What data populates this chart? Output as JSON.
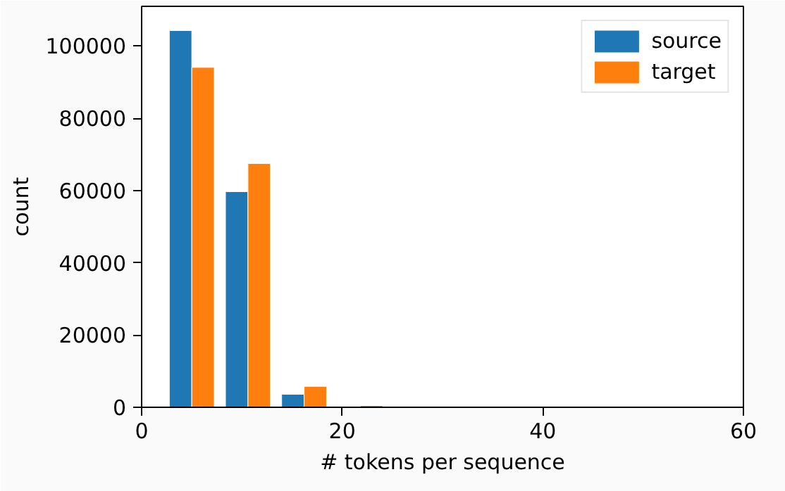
{
  "chart_data": {
    "type": "histogram",
    "xlabel": "# tokens per sequence",
    "ylabel": "count",
    "bins": [
      2.2,
      7.8,
      13.4,
      19.0,
      24.6
    ],
    "series": [
      {
        "name": "source",
        "color": "#1f77b4",
        "values": [
          104300,
          59700,
          3600,
          null
        ]
      },
      {
        "name": "target",
        "color": "#ff7f0e",
        "values": [
          94100,
          67500,
          5800,
          500
        ]
      }
    ],
    "xlim": [
      0,
      60
    ],
    "xticks": [
      0,
      20,
      40,
      60
    ],
    "ylim": [
      0,
      111000
    ],
    "yticks": [
      0,
      20000,
      40000,
      60000,
      80000,
      100000
    ],
    "grid": false,
    "legend": "top right"
  }
}
